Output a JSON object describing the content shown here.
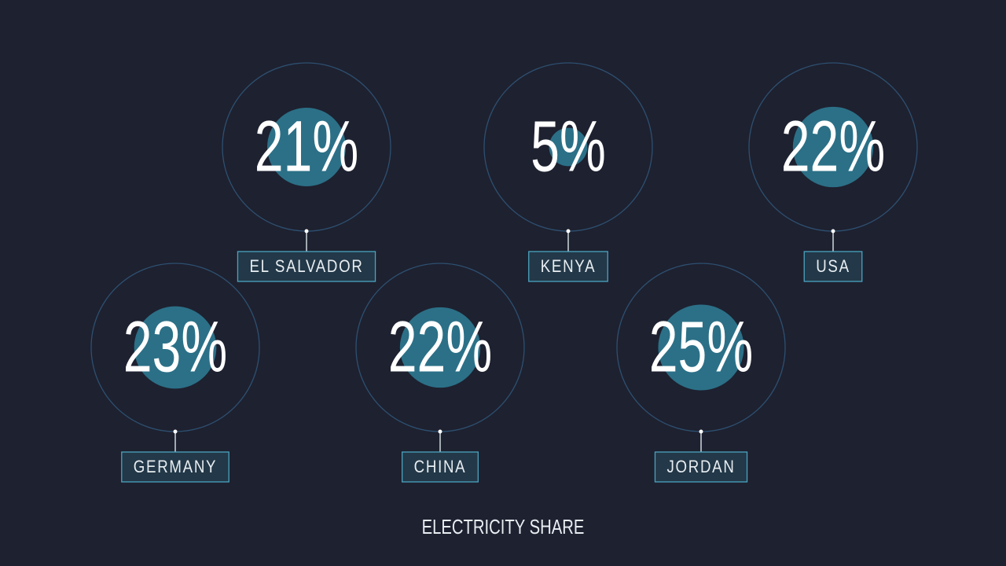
{
  "chart_data": {
    "type": "bubble",
    "title": "ELECTRICITY SHARE",
    "categories": [
      "EL SALVADOR",
      "KENYA",
      "USA",
      "GERMANY",
      "CHINA",
      "JORDAN"
    ],
    "values": [
      21,
      5,
      22,
      23,
      22,
      25
    ],
    "value_labels": [
      "21%",
      "5%",
      "22%",
      "23%",
      "22%",
      "25%"
    ],
    "color": "#2b7087"
  }
}
